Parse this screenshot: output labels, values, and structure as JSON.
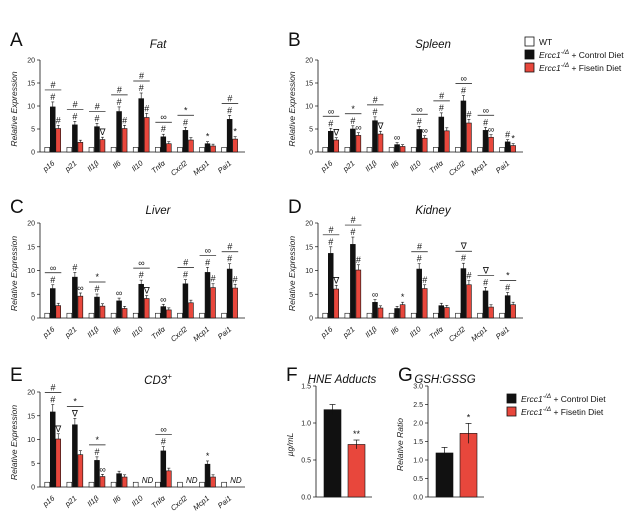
{
  "legend_top": {
    "entries": [
      {
        "label": "WT",
        "color": "#ffffff"
      },
      {
        "label": "Ercc1-/Δ + Control Diet",
        "color": "#111111"
      },
      {
        "label": "Ercc1-/Δ + Fisetin Diet",
        "color": "#e8473c"
      }
    ]
  },
  "legend_bottom": {
    "entries": [
      {
        "label": "Ercc1-/Δ + Control Diet",
        "color": "#111111"
      },
      {
        "label": "Ercc1-/Δ + Fisetin Diet",
        "color": "#e8473c"
      }
    ]
  },
  "chart_data": [
    {
      "panel": "A",
      "title": "Fat",
      "type": "bar",
      "ylabel": "Relative Expression",
      "ylim": [
        0,
        20
      ],
      "yticks": [
        0,
        5,
        10,
        15,
        20
      ],
      "categories": [
        "p16",
        "p21",
        "Il1β",
        "Il6",
        "Il10",
        "Tnfα",
        "Cxcl2",
        "Mcp1",
        "Pai1"
      ],
      "series": [
        {
          "name": "WT",
          "values": [
            1,
            1,
            1,
            1,
            1,
            1,
            1,
            1,
            1
          ]
        },
        {
          "name": "Ercc1-/Δ + Control Diet",
          "values": [
            9.8,
            5.9,
            5.5,
            8.8,
            11.6,
            3.3,
            4.7,
            1.8,
            7.1
          ]
        },
        {
          "name": "Ercc1-/Δ + Fisetin Diet",
          "values": [
            5.1,
            2.1,
            2.7,
            5.1,
            7.5,
            1.8,
            2.6,
            1.3,
            2.8
          ]
        }
      ],
      "markers": [
        {
          "cat": 0,
          "ctl": "#",
          "fis": "#",
          "bracket": "#"
        },
        {
          "cat": 1,
          "ctl": "#",
          "fis": "",
          "bracket": "#"
        },
        {
          "cat": 2,
          "ctl": "#",
          "fis": "∇",
          "bracket": "#"
        },
        {
          "cat": 3,
          "ctl": "#",
          "fis": "#",
          "bracket": "#"
        },
        {
          "cat": 4,
          "ctl": "#",
          "fis": "#",
          "bracket": "#"
        },
        {
          "cat": 5,
          "ctl": "#",
          "fis": "",
          "bracket": "∞"
        },
        {
          "cat": 6,
          "ctl": "#",
          "fis": "",
          "bracket": "*"
        },
        {
          "cat": 7,
          "ctl": "*",
          "fis": "",
          "bracket": ""
        },
        {
          "cat": 8,
          "ctl": "#",
          "fis": "*",
          "bracket": "#"
        }
      ]
    },
    {
      "panel": "B",
      "title": "Spleen",
      "type": "bar",
      "ylabel": "Relative Expression",
      "ylim": [
        0,
        20
      ],
      "yticks": [
        0,
        5,
        10,
        15,
        20
      ],
      "categories": [
        "p16",
        "p21",
        "Il1β",
        "Il6",
        "Il10",
        "Tnfα",
        "Cxcl2",
        "Mcp1",
        "Pai1"
      ],
      "series": [
        {
          "name": "WT",
          "values": [
            1,
            1,
            1,
            1,
            1,
            1,
            1,
            1,
            1
          ]
        },
        {
          "name": "Ercc1-/Δ + Control Diet",
          "values": [
            4.5,
            5.0,
            6.8,
            1.6,
            4.9,
            7.6,
            11.1,
            4.7,
            2.2
          ]
        },
        {
          "name": "Ercc1-/Δ + Fisetin Diet",
          "values": [
            2.6,
            3.6,
            3.9,
            1.2,
            3.0,
            4.6,
            6.3,
            3.2,
            1.4
          ]
        }
      ],
      "markers": [
        {
          "cat": 0,
          "ctl": "#",
          "fis": "∇",
          "bracket": "∞"
        },
        {
          "cat": 1,
          "ctl": "#",
          "fis": "∞",
          "bracket": "*"
        },
        {
          "cat": 2,
          "ctl": "#",
          "fis": "∇",
          "bracket": "#"
        },
        {
          "cat": 3,
          "ctl": "∞",
          "fis": "",
          "bracket": ""
        },
        {
          "cat": 4,
          "ctl": "#",
          "fis": "∞",
          "bracket": "∞"
        },
        {
          "cat": 5,
          "ctl": "#",
          "fis": "",
          "bracket": "#"
        },
        {
          "cat": 6,
          "ctl": "#",
          "fis": "#",
          "bracket": "∞"
        },
        {
          "cat": 7,
          "ctl": "#",
          "fis": "∞",
          "bracket": "∞"
        },
        {
          "cat": 8,
          "ctl": "#",
          "fis": "*",
          "bracket": ""
        }
      ]
    },
    {
      "panel": "C",
      "title": "Liver",
      "type": "bar",
      "ylabel": "Relative Expression",
      "ylim": [
        0,
        20
      ],
      "yticks": [
        0,
        5,
        10,
        15,
        20
      ],
      "categories": [
        "p16",
        "p21",
        "Il1β",
        "Il6",
        "Il10",
        "Tnfα",
        "Cxcl2",
        "Mcp1",
        "Pai1"
      ],
      "series": [
        {
          "name": "WT",
          "values": [
            1,
            1,
            1,
            1,
            1,
            1,
            1,
            1,
            1
          ]
        },
        {
          "name": "Ercc1-/Δ + Control Diet",
          "values": [
            6.2,
            8.6,
            4.4,
            3.6,
            7.1,
            2.4,
            7.2,
            9.6,
            10.3
          ]
        },
        {
          "name": "Ercc1-/Δ + Fisetin Diet",
          "values": [
            2.6,
            4.6,
            2.5,
            2.0,
            4.1,
            1.7,
            3.2,
            6.4,
            6.3
          ]
        }
      ],
      "markers": [
        {
          "cat": 0,
          "ctl": "#",
          "fis": "",
          "bracket": "∞"
        },
        {
          "cat": 1,
          "ctl": "#",
          "fis": "∞",
          "bracket": ""
        },
        {
          "cat": 2,
          "ctl": "#",
          "fis": "",
          "bracket": "*"
        },
        {
          "cat": 3,
          "ctl": "∞",
          "fis": "",
          "bracket": ""
        },
        {
          "cat": 4,
          "ctl": "#",
          "fis": "∇",
          "bracket": "∞"
        },
        {
          "cat": 5,
          "ctl": "∞",
          "fis": "",
          "bracket": ""
        },
        {
          "cat": 6,
          "ctl": "#",
          "fis": "",
          "bracket": "#"
        },
        {
          "cat": 7,
          "ctl": "#",
          "fis": "#",
          "bracket": "∞"
        },
        {
          "cat": 8,
          "ctl": "#",
          "fis": "#",
          "bracket": "#"
        }
      ]
    },
    {
      "panel": "D",
      "title": "Kidney",
      "type": "bar",
      "ylabel": "Relative Expression",
      "ylim": [
        0,
        20
      ],
      "yticks": [
        0,
        5,
        10,
        15,
        20
      ],
      "categories": [
        "p16",
        "p21",
        "Il1β",
        "Il6",
        "Il10",
        "Tnfα",
        "Cxcl2",
        "Mcp1",
        "Pai1"
      ],
      "series": [
        {
          "name": "WT",
          "values": [
            1,
            1,
            1,
            1,
            1,
            1,
            1,
            1,
            1
          ]
        },
        {
          "name": "Ercc1-/Δ + Control Diet",
          "values": [
            13.6,
            15.5,
            3.3,
            2.0,
            10.3,
            2.6,
            10.4,
            5.7,
            4.7
          ]
        },
        {
          "name": "Ercc1-/Δ + Fisetin Diet",
          "values": [
            6.1,
            10.1,
            2.1,
            2.8,
            6.2,
            2.2,
            7.0,
            2.3,
            2.8
          ]
        }
      ],
      "markers": [
        {
          "cat": 0,
          "ctl": "#",
          "fis": "∇",
          "bracket": "#"
        },
        {
          "cat": 1,
          "ctl": "#",
          "fis": "#",
          "bracket": "#"
        },
        {
          "cat": 2,
          "ctl": "∞",
          "fis": "",
          "bracket": ""
        },
        {
          "cat": 3,
          "ctl": "",
          "fis": "*",
          "bracket": ""
        },
        {
          "cat": 4,
          "ctl": "#",
          "fis": "#",
          "bracket": "#"
        },
        {
          "cat": 5,
          "ctl": "",
          "fis": "",
          "bracket": ""
        },
        {
          "cat": 6,
          "ctl": "#",
          "fis": "#",
          "bracket": "∇"
        },
        {
          "cat": 7,
          "ctl": "#",
          "fis": "",
          "bracket": "∇"
        },
        {
          "cat": 8,
          "ctl": "#",
          "fis": "",
          "bracket": "*"
        }
      ]
    },
    {
      "panel": "E",
      "title": "CD3+",
      "type": "bar",
      "ylabel": "Relative Expression",
      "ylim": [
        0,
        20
      ],
      "yticks": [
        0,
        5,
        10,
        15,
        20
      ],
      "categories": [
        "p16",
        "p21",
        "Il1β",
        "Il6",
        "Il10",
        "Tnfα",
        "Cxcl2",
        "Mcp1",
        "Pai1"
      ],
      "series": [
        {
          "name": "WT",
          "values": [
            1,
            1,
            1,
            1,
            1,
            1,
            1,
            1,
            1
          ]
        },
        {
          "name": "Ercc1-/Δ + Control Diet",
          "values": [
            15.8,
            13.1,
            5.6,
            2.8,
            null,
            7.6,
            null,
            4.8,
            null
          ]
        },
        {
          "name": "Ercc1-/Δ + Fisetin Diet",
          "values": [
            10.1,
            6.8,
            2.2,
            2.1,
            null,
            3.4,
            null,
            2.1,
            null
          ]
        }
      ],
      "nd_label": "ND",
      "nd_categories": [
        4,
        6,
        8
      ],
      "markers": [
        {
          "cat": 0,
          "ctl": "#",
          "fis": "∇",
          "bracket": "#"
        },
        {
          "cat": 1,
          "ctl": "∇",
          "fis": "",
          "bracket": "*"
        },
        {
          "cat": 2,
          "ctl": "#",
          "fis": "∞",
          "bracket": "*"
        },
        {
          "cat": 3,
          "ctl": "",
          "fis": "",
          "bracket": ""
        },
        {
          "cat": 4,
          "ctl": "",
          "fis": "",
          "bracket": ""
        },
        {
          "cat": 5,
          "ctl": "#",
          "fis": "",
          "bracket": "∞"
        },
        {
          "cat": 6,
          "ctl": "",
          "fis": "",
          "bracket": ""
        },
        {
          "cat": 7,
          "ctl": "*",
          "fis": "",
          "bracket": ""
        },
        {
          "cat": 8,
          "ctl": "",
          "fis": "",
          "bracket": ""
        }
      ]
    },
    {
      "panel": "F",
      "title": "HNE Adducts",
      "type": "bar",
      "ylabel": "µg/mL",
      "ylim": [
        0,
        1.5
      ],
      "yticks": [
        0.0,
        0.5,
        1.0,
        1.5
      ],
      "categories": [
        "Ercc1-/Δ + Control Diet",
        "Ercc1-/Δ + Fisetin Diet"
      ],
      "values": [
        1.18,
        0.71
      ],
      "errors": [
        0.07,
        0.06
      ],
      "sig": [
        "",
        "**"
      ]
    },
    {
      "panel": "G",
      "title": "GSH:GSSG",
      "type": "bar",
      "ylabel": "Relative Ratio",
      "ylim": [
        0,
        3.0
      ],
      "yticks": [
        0.0,
        0.5,
        1.0,
        1.5,
        2.0,
        2.5,
        3.0
      ],
      "categories": [
        "Ercc1-/Δ + Control Diet",
        "Ercc1-/Δ + Fisetin Diet"
      ],
      "values": [
        1.19,
        1.72
      ],
      "errors": [
        0.15,
        0.27
      ],
      "sig": [
        "",
        "*"
      ]
    }
  ]
}
